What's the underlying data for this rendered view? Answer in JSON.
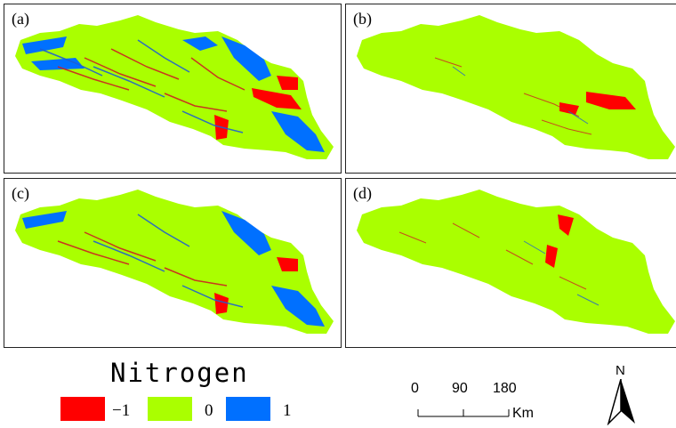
{
  "panels": [
    {
      "label": "(a)"
    },
    {
      "label": "(b)"
    },
    {
      "label": "(c)"
    },
    {
      "label": "(d)"
    }
  ],
  "legend": {
    "title": "Nitrogen",
    "classes": [
      {
        "label": "−1",
        "color": "#ff0000"
      },
      {
        "label": "0",
        "color": "#aaff00"
      },
      {
        "label": "1",
        "color": "#0070ff"
      }
    ]
  },
  "scale_bar": {
    "ticks": [
      "0",
      "90",
      "180"
    ],
    "unit": "Km"
  },
  "north_arrow": {
    "label": "N",
    "icon": "north-arrow-icon"
  }
}
